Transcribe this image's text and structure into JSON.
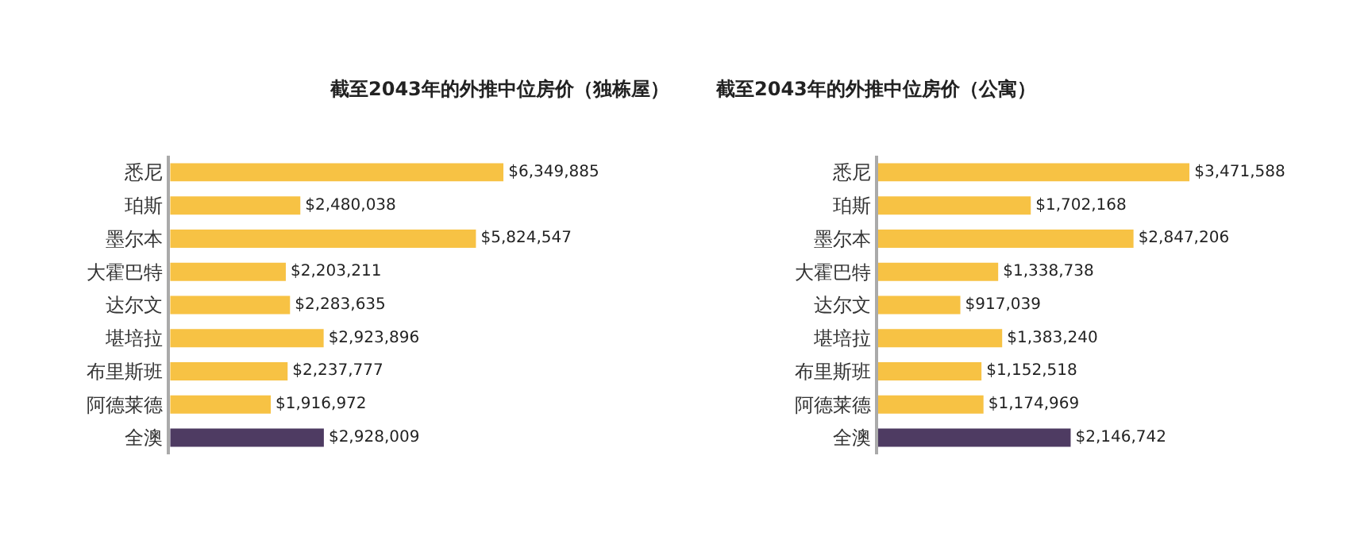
{
  "chart_data": [
    {
      "type": "bar",
      "orientation": "horizontal",
      "title": "截至2043年的外推中位房价（独栋屋）",
      "categories": [
        "悉尼",
        "珀斯",
        "墨尔本",
        "大霍巴特",
        "达尔文",
        "堪培拉",
        "布里斯班",
        "阿德莱德",
        "全澳"
      ],
      "values": [
        6349885,
        2480038,
        5824547,
        2203211,
        2283635,
        2923896,
        2237777,
        1916972,
        2928009
      ],
      "value_labels": [
        "$6,349,885",
        "$2,480,038",
        "$5,824,547",
        "$2,203,211",
        "$2,283,635",
        "$2,923,896",
        "$2,237,777",
        "$1,916,972",
        "$2,928,009"
      ],
      "colors": [
        "#f7c244",
        "#f7c244",
        "#f7c244",
        "#f7c244",
        "#f7c244",
        "#f7c244",
        "#f7c244",
        "#f7c244",
        "#4e3b62"
      ]
    },
    {
      "type": "bar",
      "orientation": "horizontal",
      "title": "截至2043年的外推中位房价（公寓）",
      "categories": [
        "悉尼",
        "珀斯",
        "墨尔本",
        "大霍巴特",
        "达尔文",
        "堪培拉",
        "布里斯班",
        "阿德莱德",
        "全澳"
      ],
      "values": [
        3471588,
        1702168,
        2847206,
        1338738,
        917039,
        1383240,
        1152518,
        1174969,
        2146742
      ],
      "value_labels": [
        "$3,471,588",
        "$1,702,168",
        "$2,847,206",
        "$1,338,738",
        "$917,039",
        "$1,383,240",
        "$1,152,518",
        "$1,174,969",
        "$2,146,742"
      ],
      "colors": [
        "#f7c244",
        "#f7c244",
        "#f7c244",
        "#f7c244",
        "#f7c244",
        "#f7c244",
        "#f7c244",
        "#f7c244",
        "#4e3b62"
      ]
    }
  ]
}
